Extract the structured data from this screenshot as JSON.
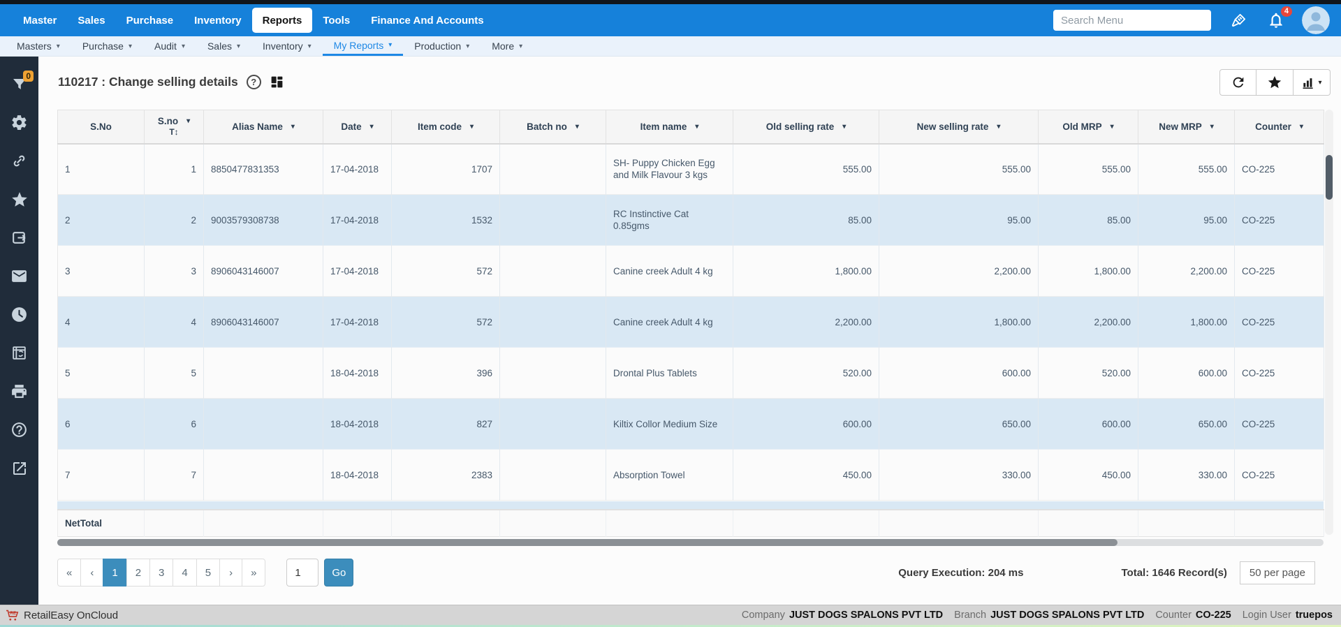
{
  "topnav": {
    "items": [
      {
        "label": "Master",
        "active": false
      },
      {
        "label": "Sales",
        "active": false
      },
      {
        "label": "Purchase",
        "active": false
      },
      {
        "label": "Inventory",
        "active": false
      },
      {
        "label": "Reports",
        "active": true
      },
      {
        "label": "Tools",
        "active": false
      },
      {
        "label": "Finance And Accounts",
        "active": false
      }
    ],
    "search": {
      "placeholder": "Search Menu"
    },
    "notifications": {
      "count": "4"
    },
    "icons": [
      "brush-icon",
      "bell-icon",
      "avatar"
    ]
  },
  "subnav": {
    "items": [
      {
        "label": "Masters",
        "active": false
      },
      {
        "label": "Purchase",
        "active": false
      },
      {
        "label": "Audit",
        "active": false
      },
      {
        "label": "Sales",
        "active": false
      },
      {
        "label": "Inventory",
        "active": false
      },
      {
        "label": "My Reports",
        "active": true
      },
      {
        "label": "Production",
        "active": false
      },
      {
        "label": "More",
        "active": false
      }
    ]
  },
  "sidebar": {
    "filter_badge": "0",
    "icons": [
      "filter",
      "gear",
      "link",
      "star",
      "export",
      "mail",
      "clock",
      "window-restore",
      "print",
      "help",
      "external-link"
    ]
  },
  "report": {
    "title": "110217 : Change selling details"
  },
  "table": {
    "columns": [
      {
        "label": "S.No",
        "filter": false
      },
      {
        "label": "S.no",
        "filter": true,
        "sort": "T↕"
      },
      {
        "label": "Alias Name",
        "filter": true
      },
      {
        "label": "Date",
        "filter": true
      },
      {
        "label": "Item code",
        "filter": true
      },
      {
        "label": "Batch no",
        "filter": true
      },
      {
        "label": "Item name",
        "filter": true
      },
      {
        "label": "Old selling rate",
        "filter": true
      },
      {
        "label": "New selling rate",
        "filter": true
      },
      {
        "label": "Old MRP",
        "filter": true
      },
      {
        "label": "New MRP",
        "filter": true
      },
      {
        "label": "Counter",
        "filter": true
      }
    ],
    "rows": [
      [
        "1",
        "1",
        "8850477831353",
        "17-04-2018",
        "1707",
        "",
        "SH- Puppy Chicken Egg and Milk Flavour 3 kgs",
        "555.00",
        "555.00",
        "555.00",
        "555.00",
        "CO-225"
      ],
      [
        "2",
        "2",
        "9003579308738",
        "17-04-2018",
        "1532",
        "",
        "RC Instinctive Cat 0.85gms",
        "85.00",
        "95.00",
        "85.00",
        "95.00",
        "CO-225"
      ],
      [
        "3",
        "3",
        "8906043146007",
        "17-04-2018",
        "572",
        "",
        "Canine creek Adult 4 kg",
        "1,800.00",
        "2,200.00",
        "1,800.00",
        "2,200.00",
        "CO-225"
      ],
      [
        "4",
        "4",
        "8906043146007",
        "17-04-2018",
        "572",
        "",
        "Canine creek Adult 4 kg",
        "2,200.00",
        "1,800.00",
        "2,200.00",
        "1,800.00",
        "CO-225"
      ],
      [
        "5",
        "5",
        "",
        "18-04-2018",
        "396",
        "",
        "Drontal Plus Tablets",
        "520.00",
        "600.00",
        "520.00",
        "600.00",
        "CO-225"
      ],
      [
        "6",
        "6",
        "",
        "18-04-2018",
        "827",
        "",
        "Kiltix Collor Medium Size",
        "600.00",
        "650.00",
        "600.00",
        "650.00",
        "CO-225"
      ],
      [
        "7",
        "7",
        "",
        "18-04-2018",
        "2383",
        "",
        "Absorption Towel",
        "450.00",
        "330.00",
        "450.00",
        "330.00",
        "CO-225"
      ]
    ],
    "net_total_label": "NetTotal"
  },
  "pagination": {
    "first": "«",
    "prev": "‹",
    "pages": [
      "1",
      "2",
      "3",
      "4",
      "5"
    ],
    "active_page": "1",
    "next": "›",
    "last": "»",
    "goto_value": "1",
    "go_label": "Go"
  },
  "stats": {
    "query_execution": "Query Execution: 204 ms",
    "total_records": "Total: 1646 Record(s)",
    "per_page": "50 per page"
  },
  "statusbar": {
    "brand": "RetailEasy OnCloud",
    "company_label": "Company",
    "company_value": "JUST DOGS SPALONS PVT LTD",
    "branch_label": "Branch",
    "branch_value": "JUST DOGS SPALONS PVT LTD",
    "counter_label": "Counter",
    "counter_value": "CO-225",
    "login_label": "Login User",
    "login_value": "truepos"
  },
  "colors": {
    "topnav_blue": "#1681da",
    "subnav_active_blue": "#1e88e5",
    "sidebar_dark": "#202c3a",
    "row_even_blue": "#d9e8f4",
    "pagination_active": "#3c8dbc",
    "badge_orange": "#efa233",
    "badge_red": "#e8463c"
  }
}
